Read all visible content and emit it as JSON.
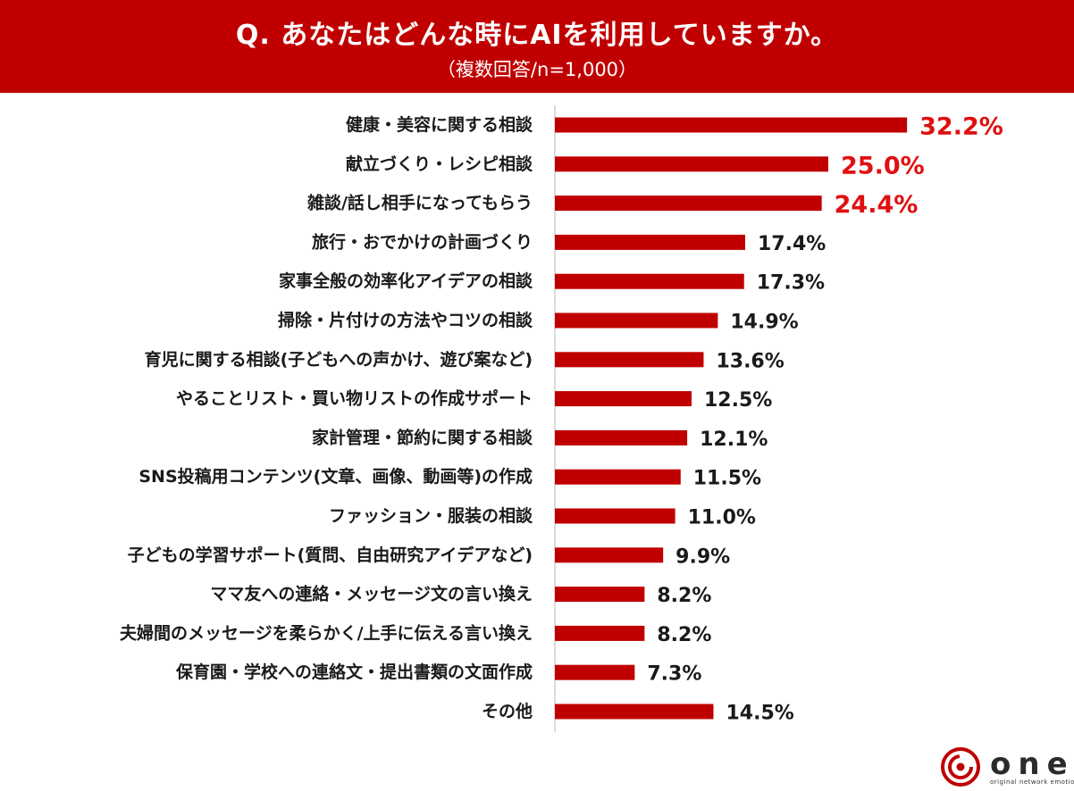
{
  "header": {
    "title": "Q. あなたはどんな時にAIを利用していますか。",
    "subtitle": "（複数回答/n=1,000）"
  },
  "chart_data": {
    "type": "bar",
    "orientation": "horizontal",
    "categories": [
      "健康・美容に関する相談",
      "献立づくり・レシピ相談",
      "雑談/話し相手になってもらう",
      "旅行・おでかけの計画づくり",
      "家事全般の効率化アイデアの相談",
      "掃除・片付けの方法やコツの相談",
      "育児に関する相談(子どもへの声かけ、遊び案など)",
      "やることリスト・買い物リストの作成サポート",
      "家計管理・節約に関する相談",
      "SNS投稿用コンテンツ(文章、画像、動画等)の作成",
      "ファッション・服装の相談",
      "子どもの学習サポート(質問、自由研究アイデアなど)",
      "ママ友への連絡・メッセージ文の言い換え",
      "夫婦間のメッセージを柔らかく/上手に伝える言い換え",
      "保育園・学校への連絡文・提出書類の文面作成",
      "その他"
    ],
    "values": [
      32.2,
      25.0,
      24.4,
      17.4,
      17.3,
      14.9,
      13.6,
      12.5,
      12.1,
      11.5,
      11.0,
      9.9,
      8.2,
      8.2,
      7.3,
      14.5
    ],
    "value_labels": [
      "32.2%",
      "25.0%",
      "24.4%",
      "17.4%",
      "17.3%",
      "14.9%",
      "13.6%",
      "12.5%",
      "12.1%",
      "11.5%",
      "11.0%",
      "9.9%",
      "8.2%",
      "8.2%",
      "7.3%",
      "14.5%"
    ],
    "highlight_top": 3,
    "bar_color": "#c00000",
    "highlight_label_color": "#e01010",
    "label_color": "#1a1a1a",
    "title": "Q. あなたはどんな時にAIを利用していますか。",
    "subtitle": "（複数回答/n=1,000）",
    "xlabel": "",
    "ylabel": "",
    "grid": false,
    "legend": "none"
  },
  "logo": {
    "word": "one",
    "tagline": "original network emotion",
    "icon": "spiral-logo-icon",
    "accent": "#c00000"
  }
}
